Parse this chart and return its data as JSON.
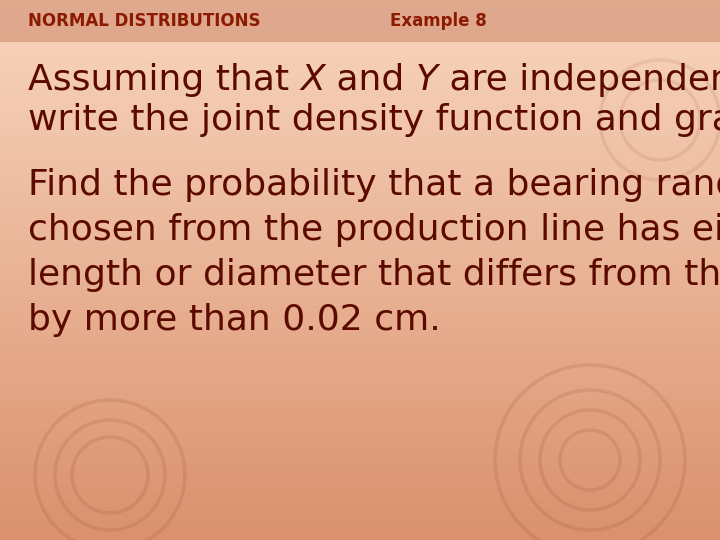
{
  "header_left": "NORMAL DISTRIBUTIONS",
  "header_right": "Example 8",
  "header_color": "#8B1A00",
  "header_bg_color": "#DDA080",
  "header_fontsize": 12,
  "body_color": "#5C0A00",
  "body_fontsize": 26,
  "bg_color_top": "#F8D8C0",
  "bg_color_mid": "#F0C0A0",
  "bg_color_bottom": "#E8A888",
  "line1a": "Assuming that ",
  "line1b": "X",
  "line1c": " and ",
  "line1d": "Y",
  "line1e": " are independent,",
  "line2": "write the joint density function and graph it.",
  "line3": "Find the probability that a bearing randomly",
  "line4": "chosen from the production line has either",
  "line5": "length or diameter that differs from the mean",
  "line6": "by more than 0.02 cm.",
  "watermark_color": "#D4906070"
}
